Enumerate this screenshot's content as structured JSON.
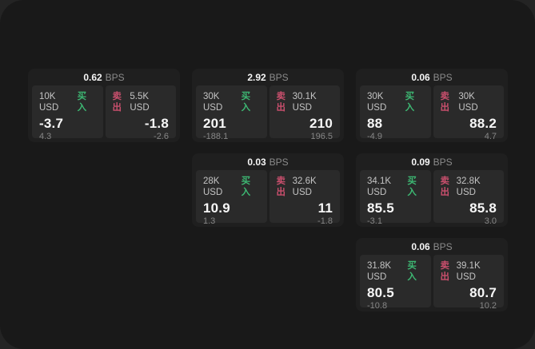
{
  "labels": {
    "bps_unit": "BPS",
    "buy": "买入",
    "sell": "卖出"
  },
  "colors": {
    "background": "#242424",
    "surface": "#191919",
    "card": "#1f1f1f",
    "panel": "#2a2a2a",
    "buy": "#3db873",
    "sell": "#c94f6d"
  },
  "cards": [
    {
      "bps": "0.62",
      "row": 1,
      "col": 1,
      "buy": {
        "size": "10K USD",
        "price": "-3.7",
        "sub": "4.3"
      },
      "sell": {
        "size": "5.5K USD",
        "price": "-1.8",
        "sub": "-2.6"
      }
    },
    {
      "bps": "2.92",
      "row": 1,
      "col": 2,
      "buy": {
        "size": "30K USD",
        "price": "201",
        "sub": "-188.1"
      },
      "sell": {
        "size": "30.1K USD",
        "price": "210",
        "sub": "196.5"
      }
    },
    {
      "bps": "0.06",
      "row": 1,
      "col": 3,
      "buy": {
        "size": "30K USD",
        "price": "88",
        "sub": "-4.9"
      },
      "sell": {
        "size": "30K USD",
        "price": "88.2",
        "sub": "4.7"
      }
    },
    {
      "bps": "0.03",
      "row": 2,
      "col": 2,
      "buy": {
        "size": "28K USD",
        "price": "10.9",
        "sub": "1.3"
      },
      "sell": {
        "size": "32.6K USD",
        "price": "11",
        "sub": "-1.8"
      }
    },
    {
      "bps": "0.09",
      "row": 2,
      "col": 3,
      "buy": {
        "size": "34.1K USD",
        "price": "85.5",
        "sub": "-3.1"
      },
      "sell": {
        "size": "32.8K USD",
        "price": "85.8",
        "sub": "3.0"
      }
    },
    {
      "bps": "0.06",
      "row": 3,
      "col": 3,
      "buy": {
        "size": "31.8K USD",
        "price": "80.5",
        "sub": "-10.8"
      },
      "sell": {
        "size": "39.1K USD",
        "price": "80.7",
        "sub": "10.2"
      }
    }
  ]
}
